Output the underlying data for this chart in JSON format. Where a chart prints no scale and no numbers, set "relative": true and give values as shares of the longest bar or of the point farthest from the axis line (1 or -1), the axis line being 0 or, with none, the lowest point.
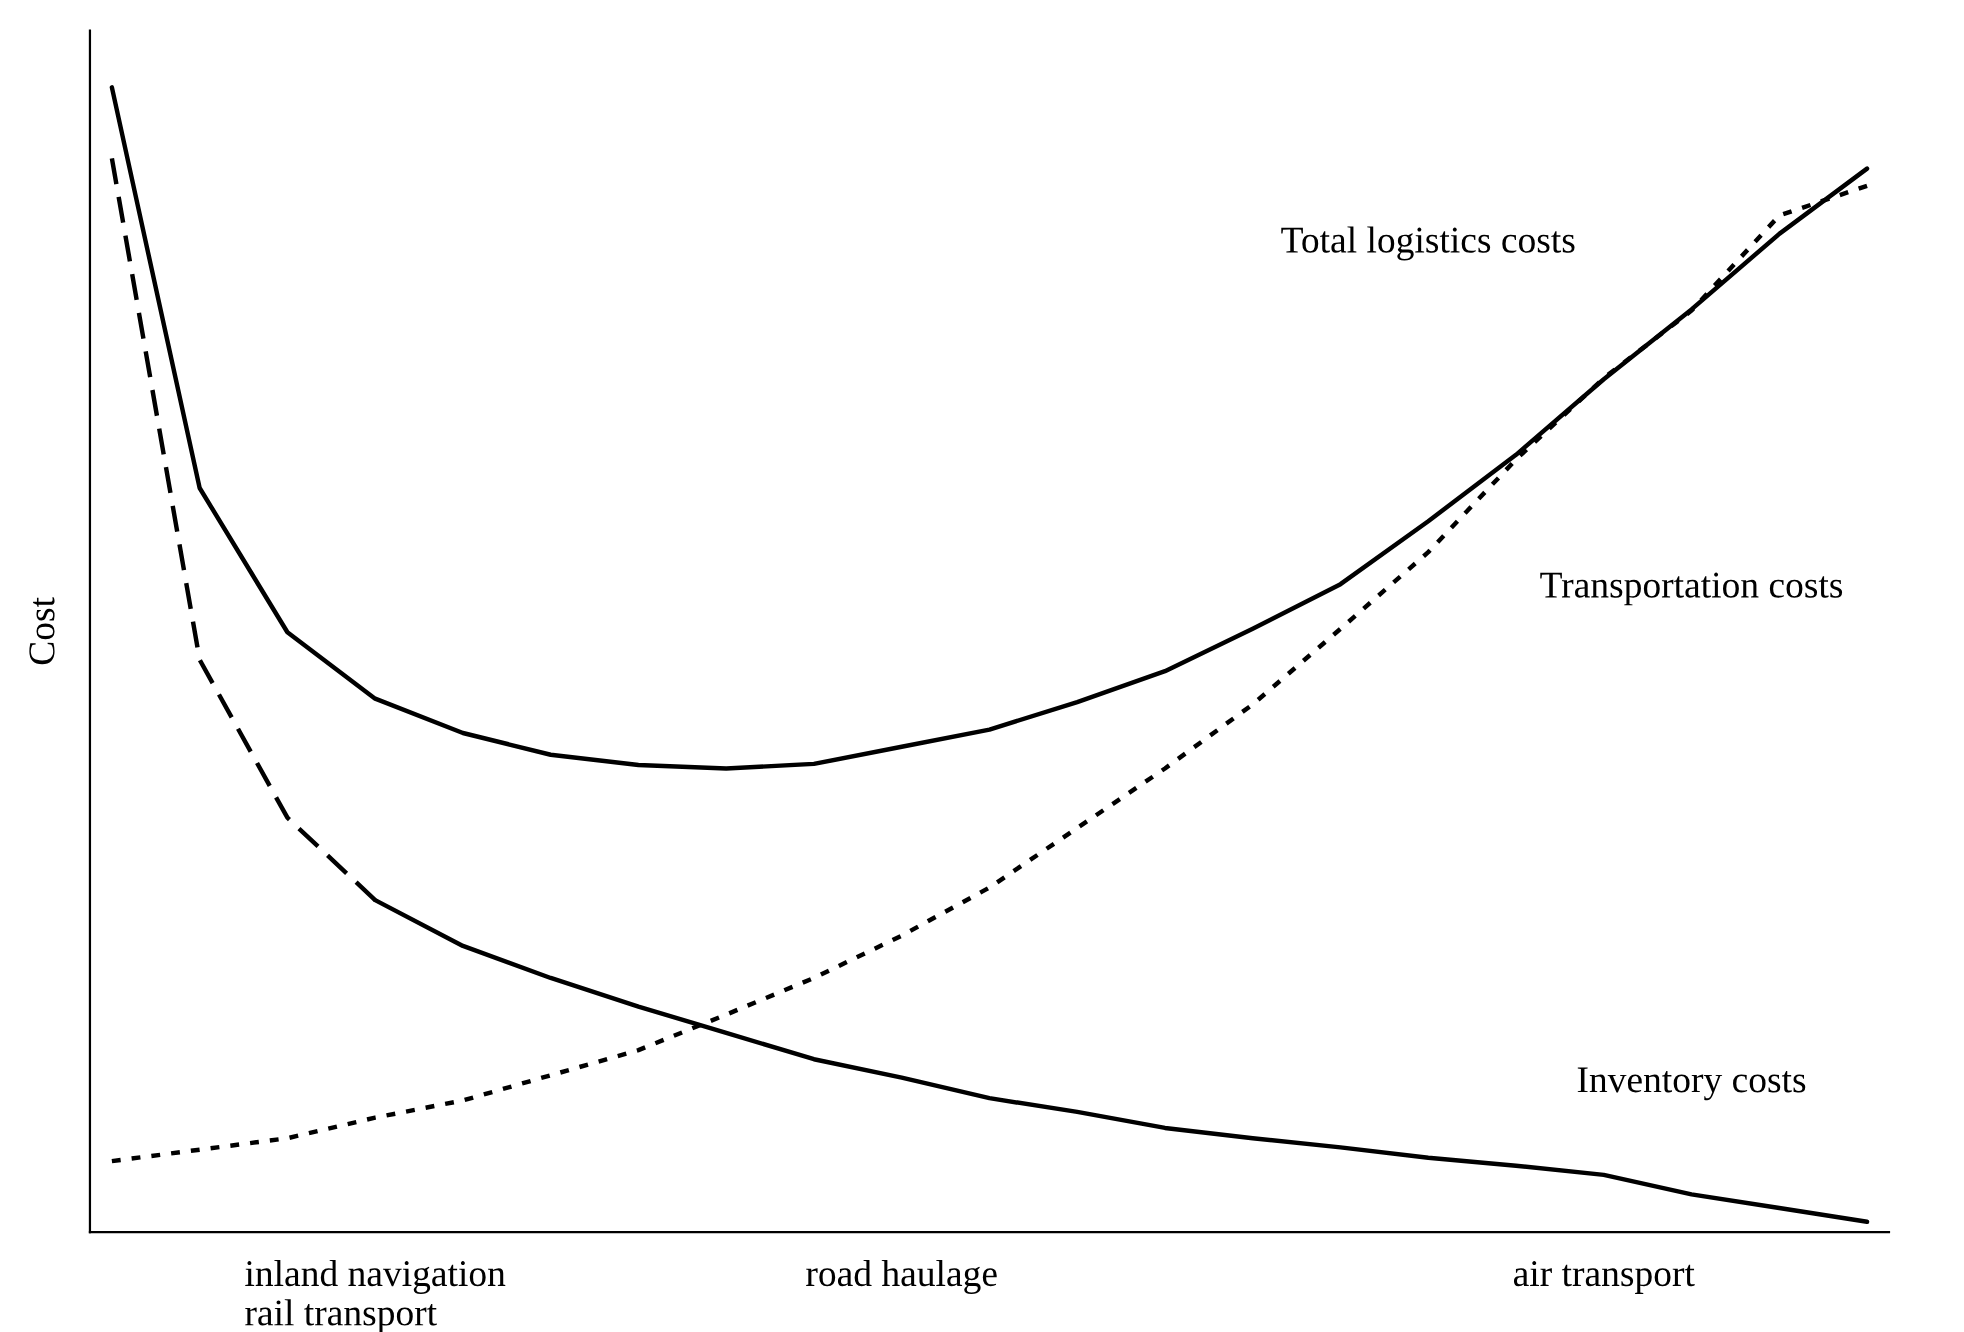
{
  "chart_data": {
    "type": "line",
    "relative": true,
    "ylabel": "Cost",
    "categories": [
      null,
      null,
      null,
      "inland navigation\nrail transport",
      null,
      null,
      null,
      null,
      null,
      "road haulage",
      null,
      null,
      null,
      null,
      null,
      null,
      null,
      "air transport",
      null,
      null,
      null
    ],
    "grid": false,
    "legend": false,
    "marker": "none",
    "series": [
      {
        "name": "Total logistics costs",
        "color": "#000000",
        "line_style": "solid",
        "values": [
          1,
          0.65,
          0.524,
          0.466,
          0.436,
          0.417,
          0.408,
          0.405,
          0.409,
          0.424,
          0.439,
          0.463,
          0.49,
          0.527,
          0.566,
          0.621,
          0.679,
          0.745,
          0.806,
          0.872,
          0.929
        ]
      },
      {
        "color": "#000000",
        "line_style": "dashed",
        "values": [
          0.938,
          0.5,
          0.362,
          0.29,
          null,
          null,
          null,
          null,
          null,
          null,
          null,
          null,
          null,
          null,
          null,
          null,
          null,
          null,
          null,
          null,
          null
        ]
      },
      {
        "name": "Inventory costs",
        "color": "#000000",
        "line_style": "solid",
        "values": [
          null,
          null,
          null,
          0.29,
          0.25,
          0.222,
          0.197,
          0.174,
          0.151,
          0.135,
          0.117,
          0.105,
          0.091,
          0.082,
          0.074,
          0.065,
          0.058,
          0.05,
          0.033,
          0.021,
          0.009
        ]
      },
      {
        "name": "Transportation costs",
        "color": "#000000",
        "line_style": "dotted",
        "values": [
          0.062,
          0.072,
          0.082,
          0.1,
          0.115,
          0.137,
          0.159,
          0.19,
          0.222,
          0.259,
          0.301,
          0.353,
          0.405,
          0.461,
          0.527,
          0.594,
          0.675,
          0.746,
          0.805,
          0.888,
          0.914
        ]
      }
    ]
  }
}
